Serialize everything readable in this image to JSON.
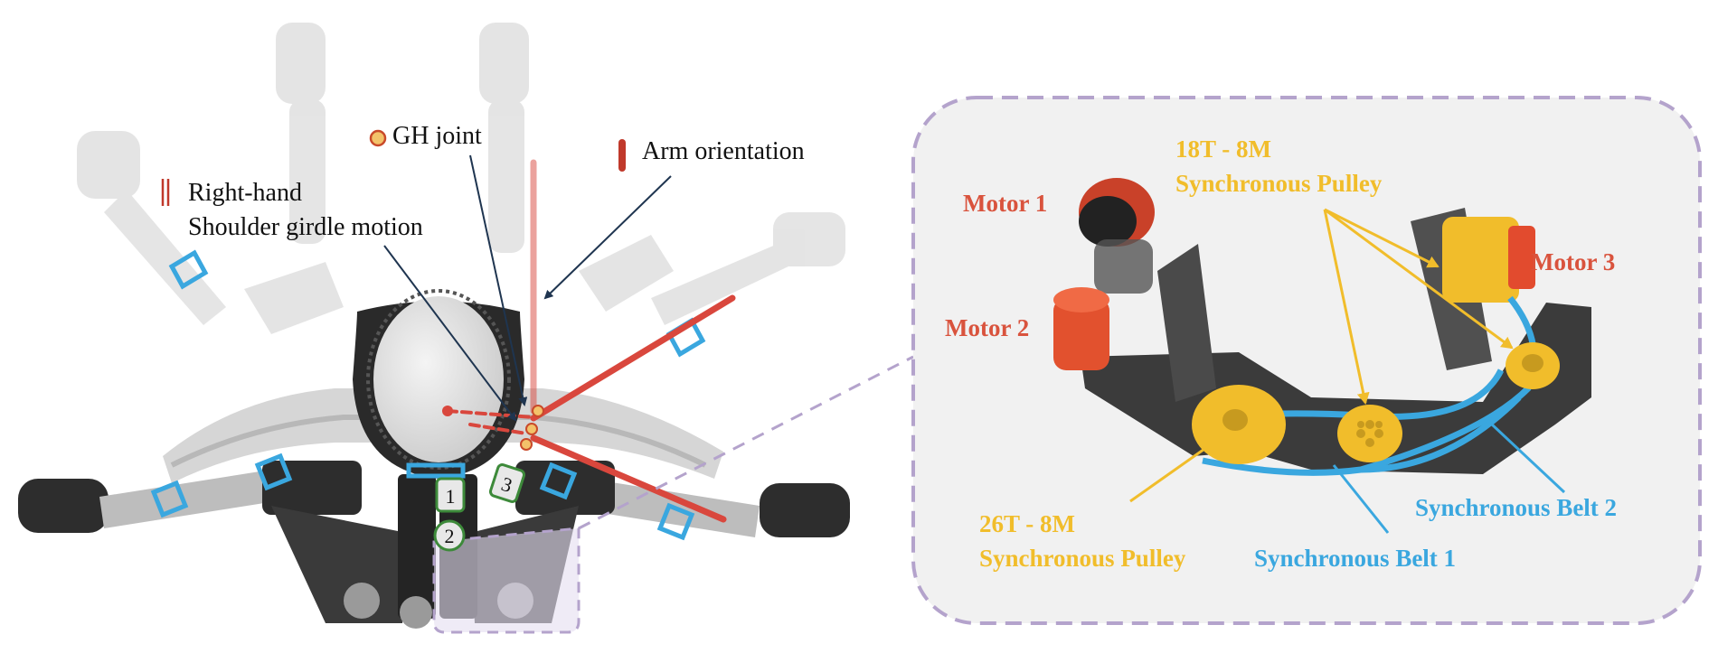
{
  "left_panel": {
    "legend": {
      "shoulder_line1": "Right-hand",
      "shoulder_line2": "Shoulder girdle motion",
      "gh_joint": "GH joint",
      "arm_orientation": "Arm orientation"
    },
    "motor_badges": [
      "1",
      "2",
      "3"
    ]
  },
  "right_panel": {
    "motor1": "Motor 1",
    "motor2": "Motor 2",
    "motor3": "Motor 3",
    "pulley_18_line1": "18T - 8M",
    "pulley_18_line2": "Synchronous Pulley",
    "pulley_26_line1": "26T - 8M",
    "pulley_26_line2": "Synchronous Pulley",
    "belt1": "Synchronous Belt 1",
    "belt2": "Synchronous Belt 2"
  },
  "colors": {
    "arm_line": "#d9473d",
    "gh_dot": "#f3c26a",
    "motor_red": "#d9533d",
    "pulley_yellow": "#f1bd2b",
    "belt_blue": "#3aa7df",
    "dash_purple": "#b4a3cc",
    "motor_badge_green": "#3d8a3a",
    "callout_arrow": "#1f3550"
  }
}
